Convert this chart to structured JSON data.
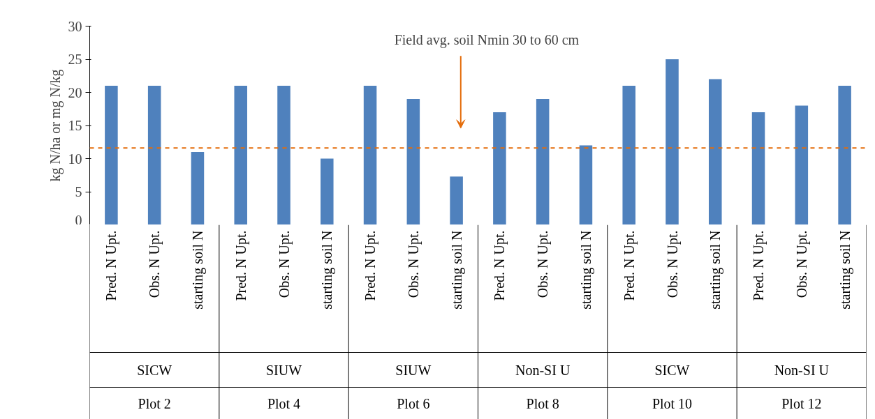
{
  "chart_data": {
    "type": "bar",
    "ylabel": "kg N/ha or mg N/kg",
    "categories": [
      "Pred. N Upt.",
      "Obs. N Upt.",
      "starting soil N",
      "Pred. N Upt.",
      "Obs. N Upt.",
      "starting soil N",
      "Pred. N Upt.",
      "Obs. N Upt.",
      "starting soil N",
      "Pred. N Upt.",
      "Obs. N Upt.",
      "starting soil N",
      "Pred. N Upt.",
      "Obs. N Upt.",
      "starting soil N",
      "Pred. N Upt.",
      "Obs. N Upt.",
      "starting soil N"
    ],
    "values": [
      21,
      21,
      11,
      21,
      21,
      10,
      21,
      19,
      7.3,
      17,
      19,
      12,
      21,
      25,
      22,
      17,
      18,
      21
    ],
    "color": "#4f81bd",
    "ylim": [
      0,
      30
    ],
    "yticks": [
      0,
      5,
      10,
      15,
      20,
      25,
      30
    ],
    "grid": false,
    "ref_lines": [
      {
        "axis": "y",
        "value": 11.6,
        "color": "#e46c0a",
        "line_style": "dashed"
      }
    ],
    "annotations": [
      "Field avg. soil Nmin 30 to 60 cm",
      "SICW",
      "SIUW",
      "SIUW",
      "Non-SI U",
      "SICW",
      "Non-SI U",
      "Plot 2",
      "Plot 4",
      "Plot 6",
      "Plot 8",
      "Plot 10",
      "Plot 12"
    ]
  }
}
